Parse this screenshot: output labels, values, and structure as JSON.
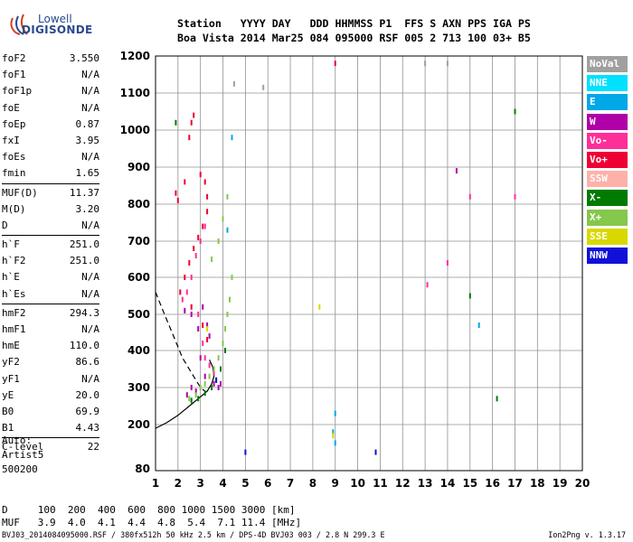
{
  "logo": {
    "line1": "Lowell",
    "line2": "DIGISONDE"
  },
  "header": {
    "line1": "Station   YYYY DAY   DDD HHMMSS P1  FFS S AXN PPS IGA PS",
    "line2": "Boa Vista 2014 Mar25 084 095000 RSF 005 2 713 100 03+ B5"
  },
  "params": [
    {
      "name": "foF2",
      "value": "3.550"
    },
    {
      "name": "foF1",
      "value": "N/A"
    },
    {
      "name": "foF1p",
      "value": "N/A"
    },
    {
      "name": "foE",
      "value": "N/A"
    },
    {
      "name": "foEp",
      "value": "0.87"
    },
    {
      "name": "fxI",
      "value": "3.95"
    },
    {
      "name": "foEs",
      "value": "N/A"
    },
    {
      "name": "fmin",
      "value": "1.65"
    },
    {
      "name": "MUF(D)",
      "value": "11.37"
    },
    {
      "name": "M(D)",
      "value": "3.20"
    },
    {
      "name": "D",
      "value": "N/A"
    },
    {
      "name": "h`F",
      "value": "251.0"
    },
    {
      "name": "h`F2",
      "value": "251.0"
    },
    {
      "name": "h`E",
      "value": "N/A"
    },
    {
      "name": "h`Es",
      "value": "N/A"
    },
    {
      "name": "hmF2",
      "value": "294.3"
    },
    {
      "name": "hmF1",
      "value": "N/A"
    },
    {
      "name": "hmE",
      "value": "110.0"
    },
    {
      "name": "yF2",
      "value": "86.6"
    },
    {
      "name": "yF1",
      "value": "N/A"
    },
    {
      "name": "yE",
      "value": "20.0"
    },
    {
      "name": "B0",
      "value": "69.9"
    },
    {
      "name": "B1",
      "value": "4.43"
    },
    {
      "name": "C-level",
      "value": "22"
    }
  ],
  "auto": {
    "line1": "Auto:",
    "line2": "Artist5",
    "line3": "500200"
  },
  "legend": [
    {
      "label": "NoVal",
      "color": "#a0a0a0"
    },
    {
      "label": "NNE",
      "color": "#00e0ff"
    },
    {
      "label": "E",
      "color": "#00a8e8"
    },
    {
      "label": "W",
      "color": "#b000a8"
    },
    {
      "label": "Vo-",
      "color": "#ff2f9a"
    },
    {
      "label": "Vo+",
      "color": "#ee0033"
    },
    {
      "label": "SSW",
      "color": "#ffb0a8"
    },
    {
      "label": "X-",
      "color": "#007a00"
    },
    {
      "label": "X+",
      "color": "#84c84c"
    },
    {
      "label": "SSE",
      "color": "#d8d800"
    },
    {
      "label": "NNW",
      "color": "#1010d8"
    }
  ],
  "muf": {
    "d_line": "D     100  200  400  600  800 1000 1500 3000 [km]",
    "muf_line": "MUF   3.9  4.0  4.1  4.4  4.8  5.4  7.1 11.4 [MHz]"
  },
  "footer": {
    "left": "BVJ03_2014084095000.RSF / 380fx512h 50 kHz 2.5 km / DPS-4D BVJ03 003 / 2.8 N 299.3 E",
    "right": "Ion2Png v. 1.3.17"
  },
  "chart_data": {
    "type": "scatter",
    "title": "",
    "xlabel": "",
    "ylabel": "",
    "xlim": [
      1,
      20
    ],
    "ylim": [
      80,
      1200
    ],
    "x_ticks": [
      1,
      2,
      3,
      4,
      5,
      6,
      7,
      8,
      9,
      10,
      11,
      12,
      13,
      14,
      15,
      16,
      17,
      18,
      19,
      20
    ],
    "y_ticks": [
      80,
      200,
      300,
      400,
      500,
      600,
      700,
      800,
      900,
      1000,
      1100,
      1200
    ],
    "grid": true,
    "legend_placement": "right",
    "series": [
      {
        "color": "#ee0033",
        "points": [
          [
            1.9,
            830
          ],
          [
            2.0,
            810
          ],
          [
            2.3,
            860
          ],
          [
            2.5,
            980
          ],
          [
            2.6,
            1020
          ],
          [
            2.7,
            1040
          ],
          [
            3.0,
            880
          ],
          [
            3.2,
            860
          ],
          [
            3.3,
            820
          ],
          [
            2.1,
            560
          ],
          [
            2.3,
            600
          ],
          [
            2.5,
            640
          ],
          [
            2.7,
            680
          ],
          [
            2.9,
            710
          ],
          [
            3.1,
            740
          ],
          [
            3.3,
            780
          ],
          [
            3.1,
            470
          ],
          [
            3.3,
            430
          ],
          [
            2.6,
            520
          ],
          [
            9.0,
            1180
          ]
        ]
      },
      {
        "color": "#ff2f9a",
        "points": [
          [
            2.2,
            540
          ],
          [
            2.4,
            560
          ],
          [
            2.6,
            600
          ],
          [
            2.8,
            660
          ],
          [
            3.0,
            700
          ],
          [
            3.2,
            740
          ],
          [
            2.9,
            500
          ],
          [
            3.1,
            420
          ],
          [
            3.2,
            380
          ],
          [
            3.4,
            360
          ],
          [
            3.6,
            340
          ],
          [
            13.1,
            580
          ],
          [
            14.0,
            640
          ],
          [
            15.0,
            820
          ],
          [
            17.0,
            820
          ]
        ]
      },
      {
        "color": "#b000a8",
        "points": [
          [
            2.3,
            510
          ],
          [
            2.6,
            500
          ],
          [
            2.9,
            460
          ],
          [
            3.1,
            520
          ],
          [
            3.3,
            470
          ],
          [
            3.4,
            440
          ],
          [
            3.0,
            380
          ],
          [
            3.2,
            330
          ],
          [
            2.6,
            300
          ],
          [
            2.8,
            290
          ],
          [
            2.4,
            280
          ],
          [
            3.6,
            310
          ],
          [
            3.8,
            300
          ],
          [
            3.9,
            310
          ],
          [
            14.4,
            890
          ]
        ]
      },
      {
        "color": "#84c84c",
        "points": [
          [
            2.5,
            270
          ],
          [
            2.8,
            280
          ],
          [
            3.0,
            300
          ],
          [
            3.2,
            310
          ],
          [
            3.4,
            330
          ],
          [
            3.6,
            350
          ],
          [
            3.8,
            380
          ],
          [
            4.0,
            420
          ],
          [
            4.1,
            460
          ],
          [
            4.2,
            500
          ],
          [
            4.3,
            540
          ],
          [
            4.4,
            600
          ],
          [
            3.5,
            650
          ],
          [
            3.8,
            700
          ],
          [
            4.0,
            760
          ],
          [
            4.2,
            820
          ]
        ]
      },
      {
        "color": "#007a00",
        "points": [
          [
            2.6,
            265
          ],
          [
            2.9,
            270
          ],
          [
            3.2,
            285
          ],
          [
            3.5,
            300
          ],
          [
            3.7,
            320
          ],
          [
            3.9,
            350
          ],
          [
            4.1,
            400
          ],
          [
            1.9,
            1020
          ],
          [
            15.0,
            550
          ],
          [
            16.2,
            270
          ],
          [
            17.0,
            1050
          ]
        ]
      },
      {
        "color": "#00a8e8",
        "points": [
          [
            4.2,
            730
          ],
          [
            4.4,
            980
          ],
          [
            8.9,
            180
          ],
          [
            9.0,
            150
          ],
          [
            9.0,
            230
          ],
          [
            15.4,
            470
          ]
        ]
      },
      {
        "color": "#d8d800",
        "points": [
          [
            8.3,
            520
          ],
          [
            3.3,
            460
          ],
          [
            8.9,
            170
          ]
        ]
      },
      {
        "color": "#1010d8",
        "points": [
          [
            3.7,
            320
          ],
          [
            5.0,
            125
          ],
          [
            10.8,
            125
          ]
        ]
      },
      {
        "color": "#a0a0a0",
        "points": [
          [
            4.5,
            1125
          ],
          [
            5.8,
            1115
          ],
          [
            13.0,
            1180
          ],
          [
            14.0,
            1180
          ]
        ]
      }
    ],
    "curves": [
      {
        "style": "solid",
        "points": [
          [
            1.0,
            190
          ],
          [
            1.5,
            205
          ],
          [
            2.0,
            225
          ],
          [
            2.5,
            250
          ],
          [
            3.0,
            275
          ],
          [
            3.3,
            290
          ],
          [
            3.5,
            310
          ],
          [
            3.6,
            330
          ],
          [
            3.55,
            355
          ],
          [
            3.4,
            375
          ]
        ]
      },
      {
        "style": "dashed",
        "points": [
          [
            1.0,
            560
          ],
          [
            1.4,
            500
          ],
          [
            1.8,
            440
          ],
          [
            2.2,
            380
          ],
          [
            2.6,
            340
          ],
          [
            3.0,
            300
          ],
          [
            3.2,
            290
          ]
        ]
      }
    ]
  }
}
